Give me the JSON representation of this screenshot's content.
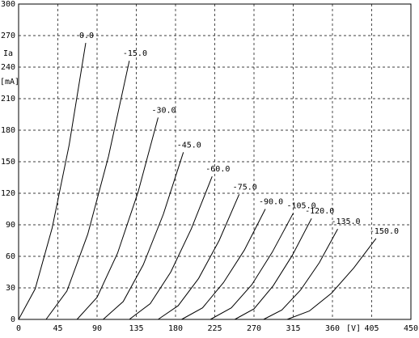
{
  "chart_data": {
    "type": "line",
    "y_label": "Ia",
    "y_unit": "[mA]",
    "x_unit": "[V]",
    "xlim": [
      0,
      450
    ],
    "ylim": [
      0,
      300
    ],
    "xticks": [
      0,
      45,
      90,
      135,
      180,
      225,
      270,
      315,
      360,
      405,
      450
    ],
    "yticks": [
      0,
      30,
      60,
      90,
      120,
      150,
      180,
      210,
      240,
      270,
      300
    ],
    "grid": true,
    "series": [
      {
        "name": "0.0",
        "color": "#000000",
        "x": [
          0,
          19,
          38.5,
          58,
          77
        ],
        "values": [
          0,
          29,
          87,
          166,
          263
        ]
      },
      {
        "name": "-15.0",
        "color": "#000000",
        "x": [
          31.5,
          55.4,
          79.3,
          103.1,
          127
        ],
        "values": [
          0,
          27,
          81,
          155,
          246
        ]
      },
      {
        "name": "-30.0",
        "color": "#000000",
        "x": [
          67,
          90,
          113.5,
          137,
          160
        ],
        "values": [
          0,
          21,
          63,
          121,
          192
        ]
      },
      {
        "name": "-45.0",
        "color": "#000000",
        "x": [
          97,
          120,
          143,
          166,
          189
        ],
        "values": [
          0,
          17,
          52,
          100,
          159
        ]
      },
      {
        "name": "-60.0",
        "color": "#000000",
        "x": [
          127,
          151,
          174.5,
          198,
          222
        ],
        "values": [
          0,
          15,
          45,
          86,
          136
        ]
      },
      {
        "name": "-75.0",
        "color": "#000000",
        "x": [
          160,
          183,
          206.5,
          230,
          253
        ],
        "values": [
          0,
          13,
          39,
          75,
          119
        ]
      },
      {
        "name": "-90.0",
        "color": "#000000",
        "x": [
          187,
          211,
          235,
          259,
          283
        ],
        "values": [
          0,
          11,
          35,
          66,
          105
        ]
      },
      {
        "name": "-105.0",
        "color": "#000000",
        "x": [
          220,
          244,
          267.5,
          291,
          315
        ],
        "values": [
          0,
          11,
          33,
          64,
          101
        ]
      },
      {
        "name": "-120.0",
        "color": "#000000",
        "x": [
          248,
          270,
          292,
          314,
          336
        ],
        "values": [
          0,
          10,
          32,
          61,
          96
        ]
      },
      {
        "name": "-135.0",
        "color": "#000000",
        "x": [
          281,
          302,
          323.5,
          345,
          366
        ],
        "values": [
          0,
          9,
          28,
          54,
          86
        ]
      },
      {
        "name": "-150.0",
        "color": "#000000",
        "x": [
          308,
          333.5,
          359,
          384.5,
          410
        ],
        "values": [
          0,
          8,
          25,
          49,
          77
        ]
      }
    ]
  }
}
